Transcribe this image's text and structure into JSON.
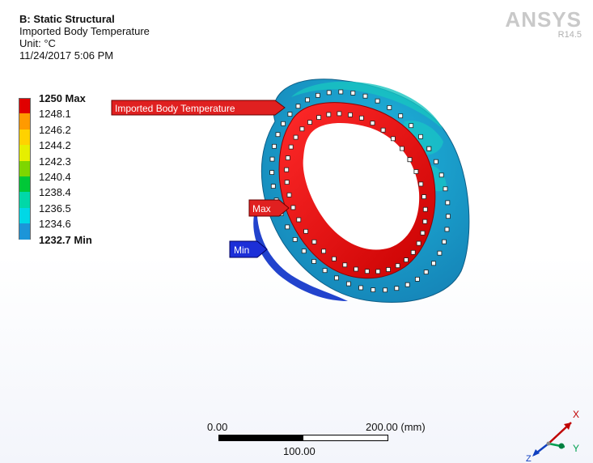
{
  "header": {
    "analysis": "B: Static Structural",
    "result": "Imported Body Temperature",
    "unit": "Unit: °C",
    "timestamp": "11/24/2017 5:06 PM"
  },
  "brand": {
    "logo": "ANSYS",
    "version": "R14.5"
  },
  "legend": {
    "items": [
      {
        "label": "1250 Max",
        "color": "#e00000",
        "bold": true
      },
      {
        "label": "1248.1",
        "color": "#ff9a00",
        "bold": false
      },
      {
        "label": "1246.2",
        "color": "#ffd200",
        "bold": false
      },
      {
        "label": "1244.2",
        "color": "#e6ef00",
        "bold": false
      },
      {
        "label": "1242.3",
        "color": "#7ed600",
        "bold": false
      },
      {
        "label": "1240.4",
        "color": "#00c837",
        "bold": false
      },
      {
        "label": "1238.4",
        "color": "#00d8a8",
        "bold": false
      },
      {
        "label": "1236.5",
        "color": "#00d8e6",
        "bold": false
      },
      {
        "label": "1234.6",
        "color": "#1c95d8",
        "bold": false
      },
      {
        "label": "1232.7 Min",
        "color": "#0000d2",
        "bold": true
      }
    ]
  },
  "probes": {
    "object_label": "Imported Body Temperature",
    "max_label": "Max",
    "min_label": "Min"
  },
  "scale": {
    "left": "0.00",
    "right": "200.00 (mm)",
    "middle": "100.00"
  },
  "triad": {
    "x": "X",
    "y": "Y",
    "z": "Z"
  },
  "colors": {
    "hot": "#e00000",
    "cold": "#0000d2",
    "body": "#1aa0cf"
  }
}
